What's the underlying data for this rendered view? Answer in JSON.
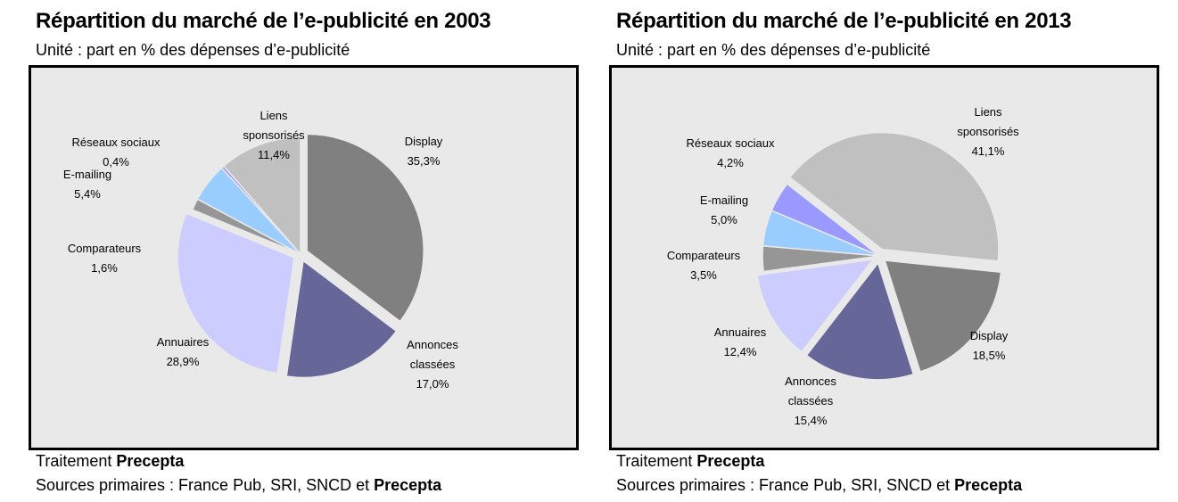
{
  "chart_data": [
    {
      "type": "pie",
      "title": "Répartition du marché de l’e-publicité en 2003",
      "subtitle": "Unité : part en % des dépenses d’e-publicité",
      "unit": "%",
      "slices": [
        {
          "name": "Display",
          "name_lines": [
            "Display"
          ],
          "value": 35.3,
          "label": "35,3%",
          "color": "#808080",
          "exploded": true
        },
        {
          "name": "Annonces classées",
          "name_lines": [
            "Annonces",
            "classées"
          ],
          "value": 17.0,
          "label": "17,0%",
          "color": "#666699",
          "exploded": true
        },
        {
          "name": "Annuaires",
          "name_lines": [
            "Annuaires"
          ],
          "value": 28.9,
          "label": "28,9%",
          "color": "#ccccff",
          "exploded": true
        },
        {
          "name": "Comparateurs",
          "name_lines": [
            "Comparateurs"
          ],
          "value": 1.6,
          "label": "1,6%",
          "color": "#969696",
          "exploded": false
        },
        {
          "name": "E-mailing",
          "name_lines": [
            "E-mailing"
          ],
          "value": 5.4,
          "label": "5,4%",
          "color": "#99ccff",
          "exploded": false
        },
        {
          "name": "Réseaux sociaux",
          "name_lines": [
            "Réseaux sociaux"
          ],
          "value": 0.4,
          "label": "0,4%",
          "color": "#9999ff",
          "exploded": false
        },
        {
          "name": "Liens sponsorisés",
          "name_lines": [
            "Liens",
            "sponsorisés"
          ],
          "value": 11.4,
          "label": "11,4%",
          "color": "#c0c0c0",
          "exploded": false
        }
      ],
      "start_angle_deg": 0,
      "footer_treatment": {
        "prefix": "Traitement ",
        "bold": "Precepta"
      },
      "footer_sources": {
        "prefix": "Sources primaires : France Pub, SRI, SNCD et ",
        "bold": "Precepta"
      }
    },
    {
      "type": "pie",
      "title": "Répartition du marché de l’e-publicité en 2013",
      "subtitle": "Unité : part en % des dépenses d’e-publicité",
      "unit": "%",
      "slices": [
        {
          "name": "Liens sponsorisés",
          "name_lines": [
            "Liens",
            "sponsorisés"
          ],
          "value": 41.1,
          "label": "41,1%",
          "color": "#c0c0c0",
          "exploded": true
        },
        {
          "name": "Display",
          "name_lines": [
            "Display"
          ],
          "value": 18.5,
          "label": "18,5%",
          "color": "#808080",
          "exploded": true
        },
        {
          "name": "Annonces classées",
          "name_lines": [
            "Annonces",
            "classées"
          ],
          "value": 15.4,
          "label": "15,4%",
          "color": "#666699",
          "exploded": true
        },
        {
          "name": "Annuaires",
          "name_lines": [
            "Annuaires"
          ],
          "value": 12.4,
          "label": "12,4%",
          "color": "#ccccff",
          "exploded": true
        },
        {
          "name": "Comparateurs",
          "name_lines": [
            "Comparateurs"
          ],
          "value": 3.5,
          "label": "3,5%",
          "color": "#969696",
          "exploded": false
        },
        {
          "name": "E-mailing",
          "name_lines": [
            "E-mailing"
          ],
          "value": 5.0,
          "label": "5,0%",
          "color": "#99ccff",
          "exploded": false
        },
        {
          "name": "Réseaux sociaux",
          "name_lines": [
            "Réseaux sociaux"
          ],
          "value": 4.2,
          "label": "4,2%",
          "color": "#9999ff",
          "exploded": false
        }
      ],
      "start_angle_deg": -52,
      "footer_treatment": {
        "prefix": "Traitement ",
        "bold": "Precepta"
      },
      "footer_sources": {
        "prefix": "Sources primaires : France Pub, SRI, SNCD et ",
        "bold": "Precepta"
      }
    }
  ]
}
